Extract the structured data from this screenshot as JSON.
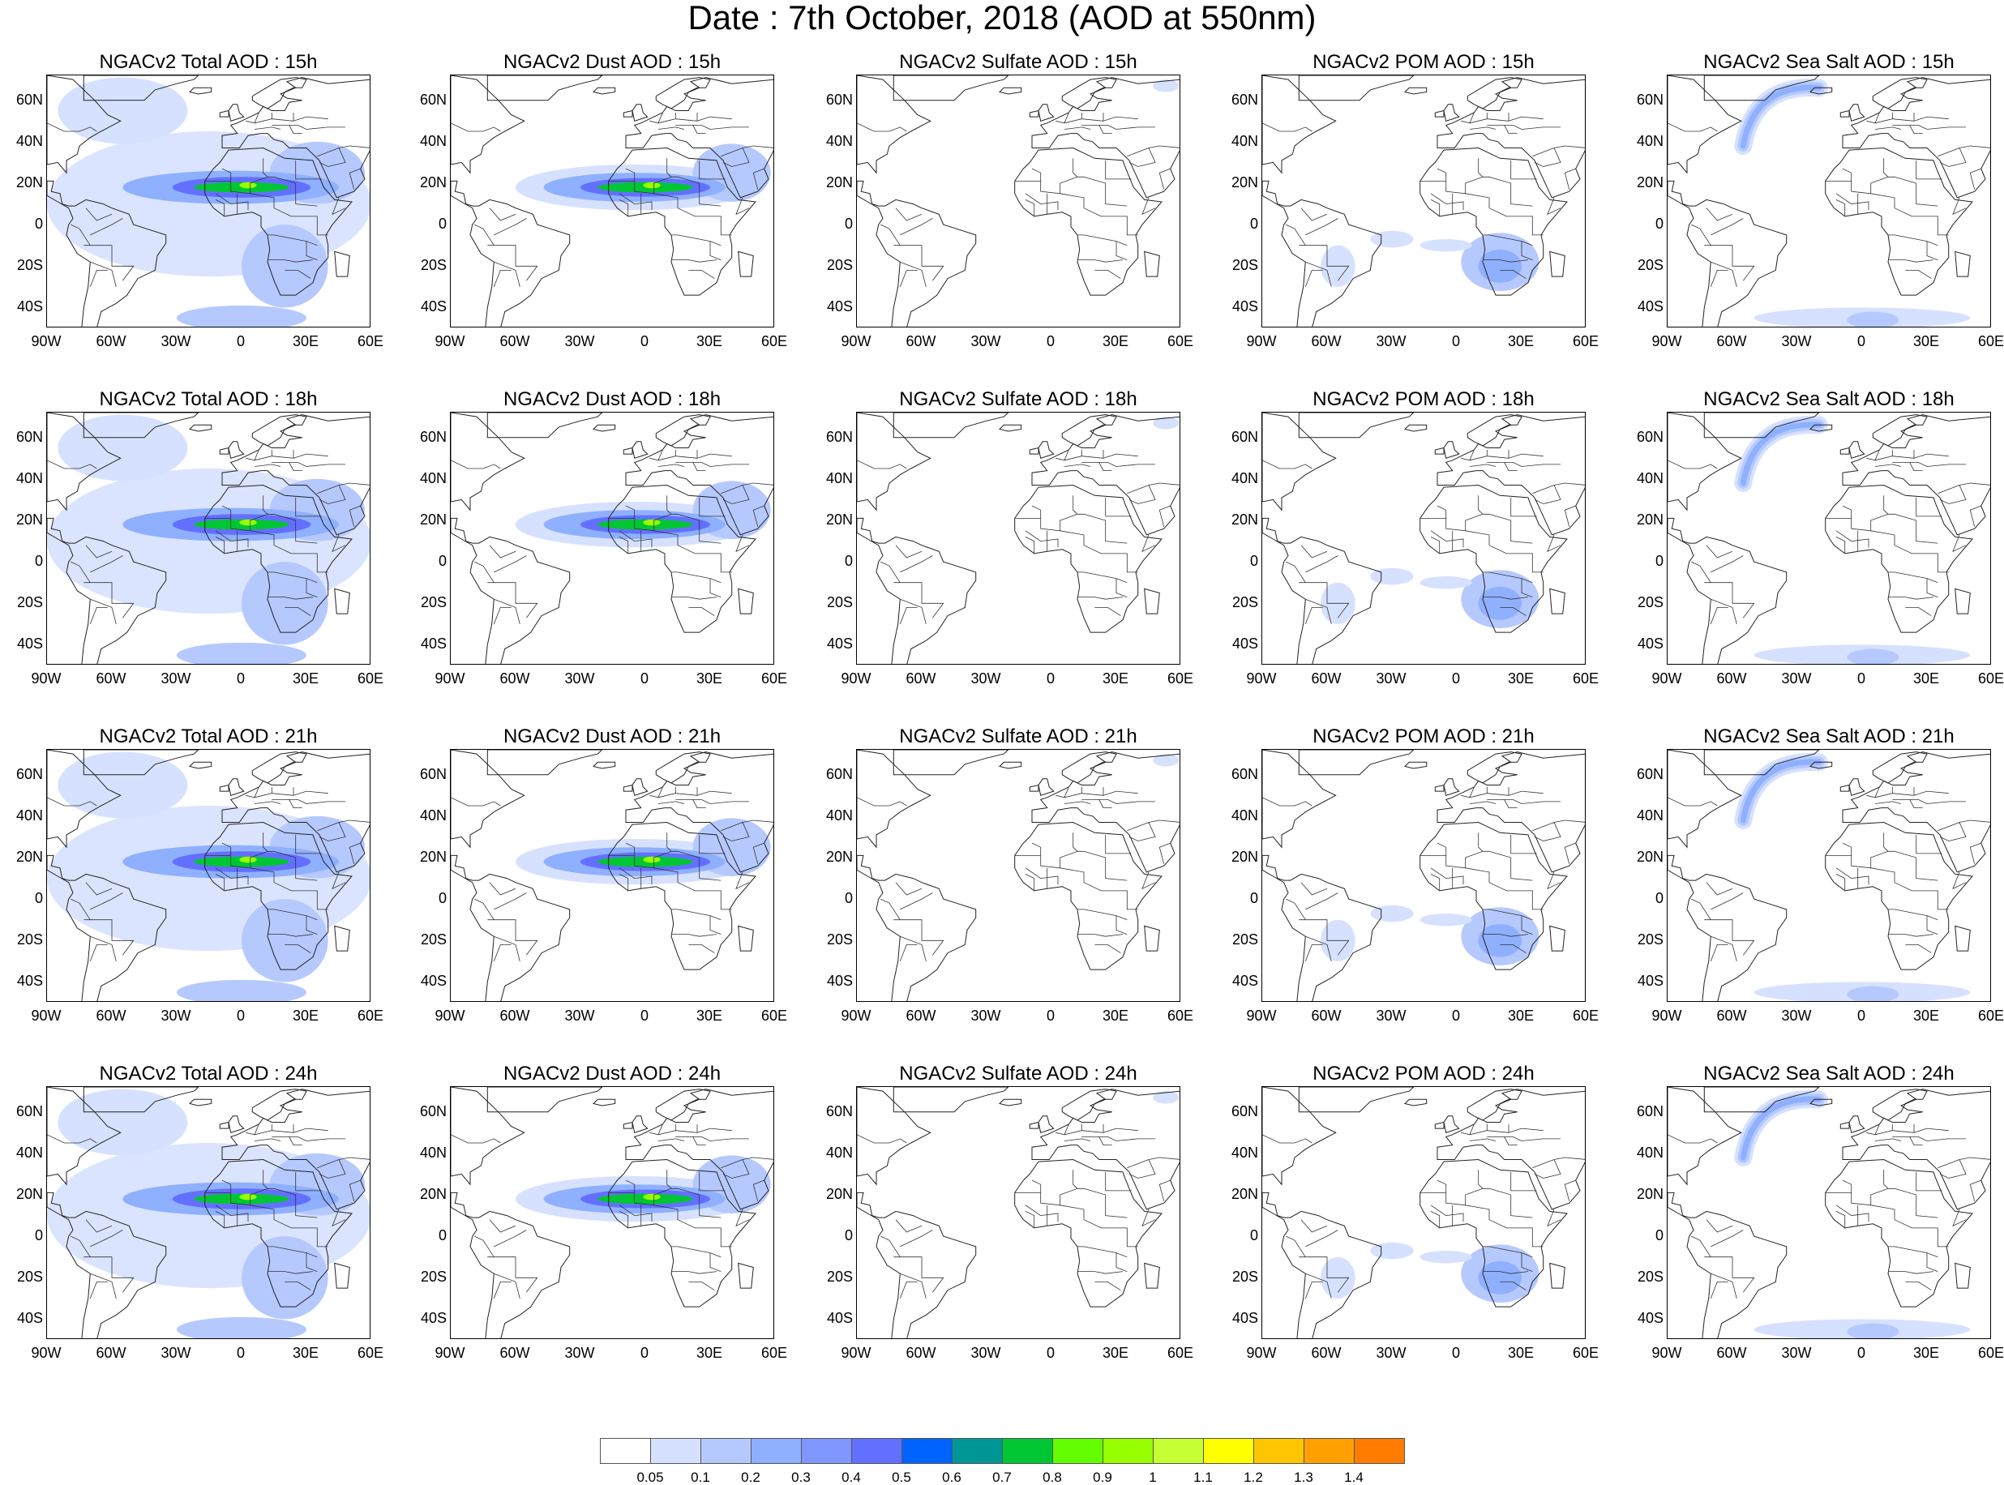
{
  "title": "Date : 7th October, 2018 (AOD at 550nm)",
  "columns": [
    "Total",
    "Dust",
    "Sulfate",
    "POM",
    "SeaSalt"
  ],
  "panels": [
    {
      "title": "NGACv2 Total AOD : 15h",
      "field": "Total",
      "hour": "15h"
    },
    {
      "title": "NGACv2 Dust AOD : 15h",
      "field": "Dust",
      "hour": "15h"
    },
    {
      "title": "NGACv2 Sulfate AOD : 15h",
      "field": "Sulfate",
      "hour": "15h"
    },
    {
      "title": "NGACv2 POM AOD : 15h",
      "field": "POM",
      "hour": "15h"
    },
    {
      "title": "NGACv2 Sea Salt AOD : 15h",
      "field": "SeaSalt",
      "hour": "15h"
    },
    {
      "title": "NGACv2 Total AOD : 18h",
      "field": "Total",
      "hour": "18h"
    },
    {
      "title": "NGACv2 Dust AOD : 18h",
      "field": "Dust",
      "hour": "18h"
    },
    {
      "title": "NGACv2 Sulfate AOD : 18h",
      "field": "Sulfate",
      "hour": "18h"
    },
    {
      "title": "NGACv2 POM AOD : 18h",
      "field": "POM",
      "hour": "18h"
    },
    {
      "title": "NGACv2 Sea Salt AOD : 18h",
      "field": "SeaSalt",
      "hour": "18h"
    },
    {
      "title": "NGACv2 Total AOD : 21h",
      "field": "Total",
      "hour": "21h"
    },
    {
      "title": "NGACv2 Dust AOD : 21h",
      "field": "Dust",
      "hour": "21h"
    },
    {
      "title": "NGACv2 Sulfate AOD : 21h",
      "field": "Sulfate",
      "hour": "21h"
    },
    {
      "title": "NGACv2 POM AOD : 21h",
      "field": "POM",
      "hour": "21h"
    },
    {
      "title": "NGACv2 Sea Salt AOD : 21h",
      "field": "SeaSalt",
      "hour": "21h"
    },
    {
      "title": "NGACv2 Total AOD : 24h",
      "field": "Total",
      "hour": "24h"
    },
    {
      "title": "NGACv2 Dust AOD : 24h",
      "field": "Dust",
      "hour": "24h"
    },
    {
      "title": "NGACv2 Sulfate AOD : 24h",
      "field": "Sulfate",
      "hour": "24h"
    },
    {
      "title": "NGACv2 POM AOD : 24h",
      "field": "POM",
      "hour": "24h"
    },
    {
      "title": "NGACv2 Sea Salt  AOD : 24h",
      "field": "SeaSalt",
      "hour": "24h"
    }
  ],
  "map_extent": {
    "lon_min": -90,
    "lon_max": 60,
    "lat_min": -50,
    "lat_max": 72
  },
  "lat_ticks": [
    {
      "label": "60N",
      "value": 60
    },
    {
      "label": "40N",
      "value": 40
    },
    {
      "label": "20N",
      "value": 20
    },
    {
      "label": "0",
      "value": 0
    },
    {
      "label": "20S",
      "value": -20
    },
    {
      "label": "40S",
      "value": -40
    }
  ],
  "lon_ticks": [
    {
      "label": "90W",
      "value": -90
    },
    {
      "label": "60W",
      "value": -60
    },
    {
      "label": "30W",
      "value": -30
    },
    {
      "label": "0",
      "value": 0
    },
    {
      "label": "30E",
      "value": 30
    },
    {
      "label": "60E",
      "value": 60
    }
  ],
  "colorbar": {
    "labels": [
      "0.05",
      "0.1",
      "0.2",
      "0.3",
      "0.4",
      "0.5",
      "0.6",
      "0.7",
      "0.8",
      "0.9",
      "1",
      "1.1",
      "1.2",
      "1.3",
      "1.4"
    ],
    "colors": [
      "#ffffff",
      "#d6e1ff",
      "#b5c9ff",
      "#8fb0ff",
      "#7f96ff",
      "#6370ff",
      "#0063ff",
      "#009696",
      "#00c633",
      "#63ff00",
      "#96ff00",
      "#c6ff33",
      "#ffff00",
      "#ffc600",
      "#ffa000",
      "#ff7c00",
      "#ff1900"
    ]
  }
}
